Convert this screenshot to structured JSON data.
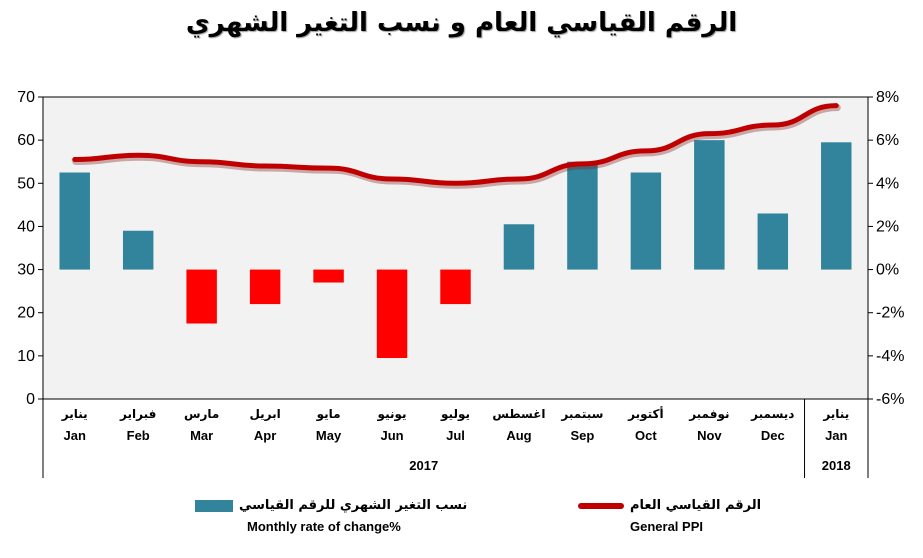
{
  "chart_data": {
    "type": "bar",
    "title": "الرقم القياسي العام و نسب التغير الشهري",
    "categories": [
      {
        "ar": "يناير",
        "en": "Jan"
      },
      {
        "ar": "فبراير",
        "en": "Feb"
      },
      {
        "ar": "مارس",
        "en": "Mar"
      },
      {
        "ar": "ابريل",
        "en": "Apr"
      },
      {
        "ar": "مايو",
        "en": "May"
      },
      {
        "ar": "يونيو",
        "en": "Jun"
      },
      {
        "ar": "يوليو",
        "en": "Jul"
      },
      {
        "ar": "اغسطس",
        "en": "Aug"
      },
      {
        "ar": "سبتمبر",
        "en": "Sep"
      },
      {
        "ar": "أكتوبر",
        "en": "Oct"
      },
      {
        "ar": "نوفمبر",
        "en": "Nov"
      },
      {
        "ar": "ديسمبر",
        "en": "Dec"
      },
      {
        "ar": "يناير",
        "en": "Jan"
      }
    ],
    "year_groups": [
      {
        "label": "2017",
        "count": 12
      },
      {
        "label": "2018",
        "count": 1
      }
    ],
    "series": [
      {
        "name": "Monthly rate of change%",
        "name_ar": "نسب التغير الشهري للرقم القياسي",
        "type": "bar",
        "axis": "right",
        "color": "#31849B",
        "negative_color": "#FF0000",
        "values": [
          4.5,
          1.8,
          -2.5,
          -1.6,
          -0.6,
          -4.1,
          -1.6,
          2.1,
          5.0,
          4.5,
          6.0,
          2.6,
          5.9
        ]
      },
      {
        "name": "General  PPI",
        "name_ar": "الرقم القياسي العام",
        "type": "line",
        "axis": "left",
        "color": "#C00000",
        "values": [
          55.5,
          56.5,
          55.0,
          54.0,
          53.5,
          51.0,
          50.0,
          51.0,
          54.5,
          57.5,
          61.5,
          63.5,
          68.0
        ]
      }
    ],
    "left_axis": {
      "ylim": [
        0,
        70
      ],
      "ticks": [
        0,
        10,
        20,
        30,
        40,
        50,
        60,
        70
      ]
    },
    "right_axis": {
      "ylim": [
        -6,
        8
      ],
      "ticks": [
        "-6%",
        "-4%",
        "-2%",
        "0%",
        "2%",
        "4%",
        "6%",
        "8%"
      ]
    },
    "grid": false,
    "plot_background": "#F2F2F2",
    "legend_position": "bottom"
  }
}
